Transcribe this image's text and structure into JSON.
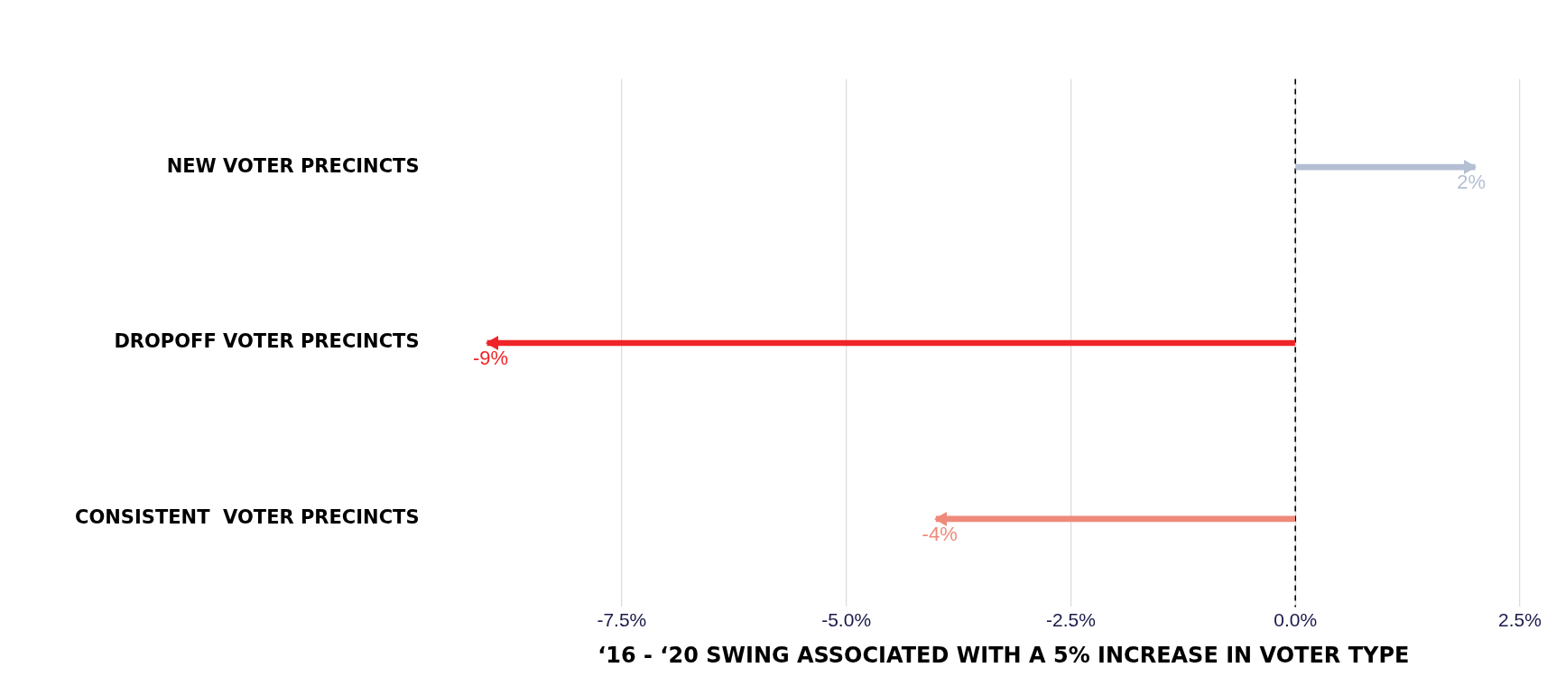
{
  "chart_data": {
    "type": "bar",
    "orientation": "horizontal",
    "xlabel": "‘16 - ‘20 SWING ASSOCIATED WITH A 5% INCREASE IN VOTER TYPE",
    "categories": [
      "NEW VOTER PRECINCTS",
      "DROPOFF VOTER PRECINCTS",
      "CONSISTENT  VOTER PRECINCTS"
    ],
    "values": [
      2,
      -9,
      -4
    ],
    "colors": [
      "#b4bfd3",
      "#ee2428",
      "#ef8a7a"
    ],
    "value_labels": [
      "2%",
      "-9%",
      "-4%"
    ],
    "xlim": [
      -9,
      2.5
    ],
    "xticks": [
      {
        "value": -7.5,
        "label": "-7.5%"
      },
      {
        "value": -5,
        "label": "-5.0%"
      },
      {
        "value": -2.5,
        "label": "-2.5%"
      },
      {
        "value": 0,
        "label": "0.0%"
      },
      {
        "value": 2.5,
        "label": "2.5%"
      }
    ],
    "ref_lines": [
      {
        "axis": "x",
        "value": 0,
        "color": "#000000",
        "line_style": "dashed"
      }
    ],
    "grid": "x",
    "legend": false
  }
}
